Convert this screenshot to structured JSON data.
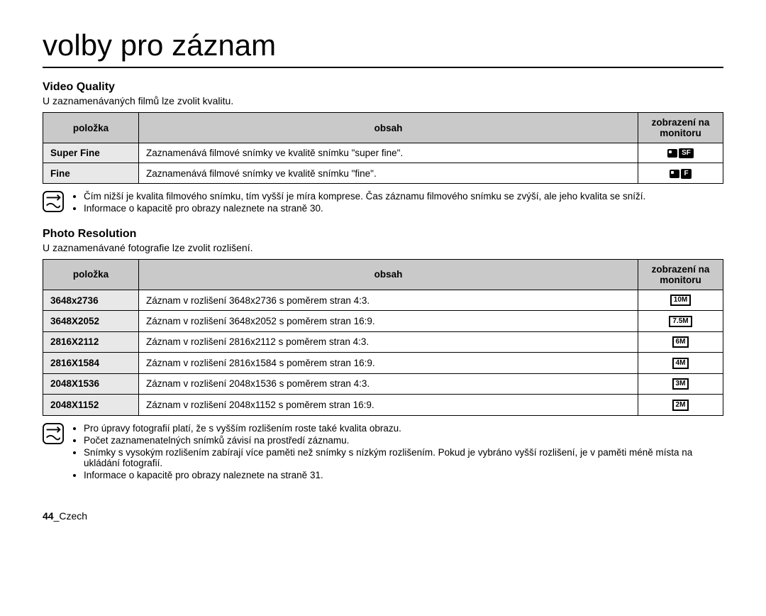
{
  "page": {
    "chapter_title": "volby pro záznam",
    "footer_page": "44",
    "footer_lang": "_Czech"
  },
  "video_quality": {
    "title": "Video Quality",
    "desc": "U zaznamenávaných filmů lze zvolit kvalitu.",
    "headers": {
      "item": "položka",
      "content": "obsah",
      "display": "zobrazení na monitoru"
    },
    "rows": [
      {
        "item": "Super Fine",
        "content": "Zaznamenává filmové snímky ve kvalitě snímku \"super fine\".",
        "icon": "SF"
      },
      {
        "item": "Fine",
        "content": "Zaznamenává filmové snímky ve kvalitě snímku \"fine\".",
        "icon": "F"
      }
    ],
    "notes": [
      "Čím nižší je kvalita filmového snímku, tím vyšší je míra komprese. Čas záznamu filmového snímku se zvýší, ale jeho kvalita se sníží.",
      "Informace o kapacitě pro obrazy naleznete na straně 30."
    ]
  },
  "photo_resolution": {
    "title": "Photo Resolution",
    "desc": "U zaznamenávané fotografie lze zvolit rozlišení.",
    "headers": {
      "item": "položka",
      "content": "obsah",
      "display": "zobrazení na monitoru"
    },
    "rows": [
      {
        "item": "3648x2736",
        "content": "Záznam v rozlišení 3648x2736 s poměrem stran 4:3.",
        "icon": "10M"
      },
      {
        "item": "3648X2052",
        "content": "Záznam v rozlišení 3648x2052 s poměrem stran 16:9.",
        "icon": "7.5M"
      },
      {
        "item": "2816X2112",
        "content": "Záznam v rozlišení 2816x2112 s poměrem stran 4:3.",
        "icon": "6M"
      },
      {
        "item": "2816X1584",
        "content": "Záznam v rozlišení 2816x1584 s poměrem stran 16:9.",
        "icon": "4M"
      },
      {
        "item": "2048X1536",
        "content": "Záznam v rozlišení 2048x1536 s poměrem stran 4:3.",
        "icon": "3M"
      },
      {
        "item": "2048X1152",
        "content": "Záznam v rozlišení 2048x1152 s poměrem stran 16:9.",
        "icon": "2M"
      }
    ],
    "notes": [
      "Pro úpravy fotografií platí, že s vyšším rozlišením roste také kvalita obrazu.",
      "Počet zaznamenatelných snímků závisí na prostředí záznamu.",
      "Snímky s vysokým rozlišením zabírají více paměti než snímky s nízkým rozlišením. Pokud je vybráno vyšší rozlišení, je v paměti méně místa na ukládání fotografií.",
      "Informace o kapacitě pro obrazy naleznete na straně 31."
    ]
  }
}
